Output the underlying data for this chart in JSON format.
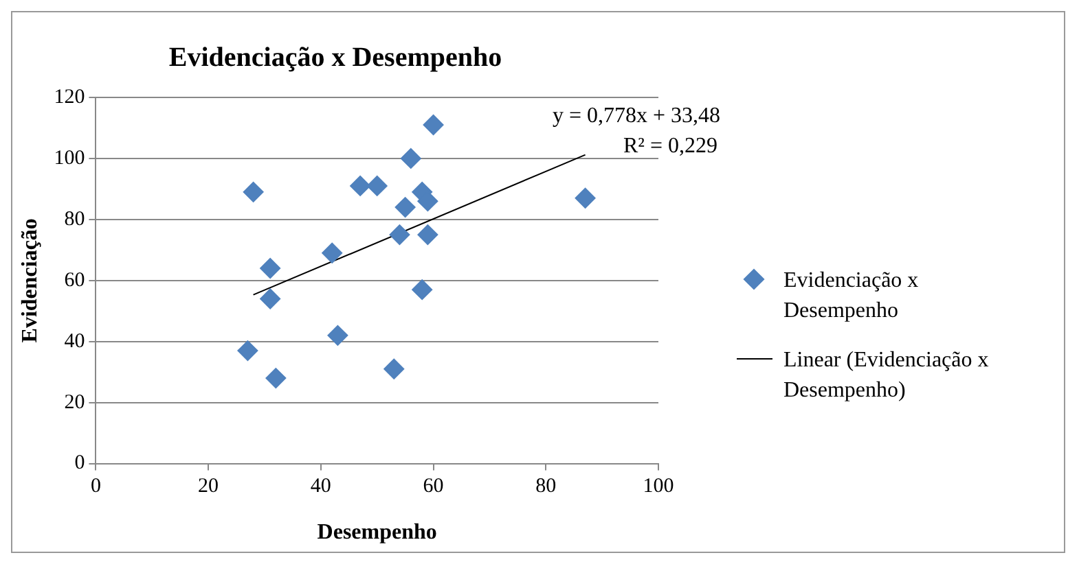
{
  "chart_data": {
    "type": "scatter",
    "title": "Evidenciação x Desempenho",
    "xlabel": "Desempenho",
    "ylabel": "Evidenciação",
    "xlim": [
      0,
      100
    ],
    "xticks": [
      0,
      20,
      40,
      60,
      80,
      100
    ],
    "ylim": [
      0,
      120
    ],
    "yticks": [
      0,
      20,
      40,
      60,
      80,
      100,
      120
    ],
    "grid": "y",
    "legend": "right",
    "marker": "diamond",
    "annotations": [
      "y = 0,778x + 33,48",
      "R² = 0,229"
    ],
    "series": [
      {
        "name": "Evidenciação x Desempenho",
        "type": "scatter",
        "color": "#4f81bd",
        "x": [
          28,
          31,
          31,
          27,
          32,
          42,
          43,
          47,
          50,
          53,
          54,
          55,
          56,
          58,
          59,
          58,
          59,
          60,
          87
        ],
        "values": [
          89,
          64,
          54,
          37,
          28,
          69,
          42,
          91,
          91,
          31,
          75,
          84,
          100,
          89,
          86,
          57,
          75,
          111,
          87
        ]
      },
      {
        "name": "Linear (Evidenciação x Desempenho)",
        "type": "line",
        "color": "#000000",
        "line_style": "solid",
        "marker": "none",
        "x": [
          28,
          87
        ],
        "values": [
          55.3,
          101.2
        ]
      }
    ]
  }
}
